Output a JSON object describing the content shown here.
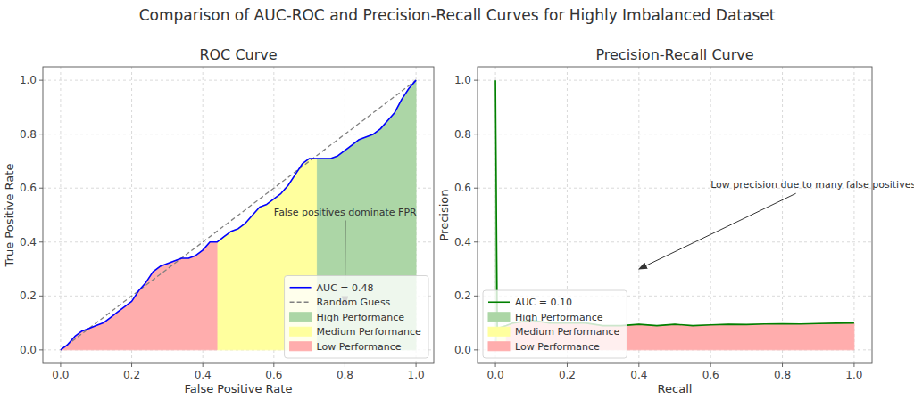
{
  "title": "Comparison of AUC-ROC and Precision-Recall Curves for Highly Imbalanced Dataset",
  "chart_data": [
    {
      "type": "line",
      "title": "ROC Curve",
      "x_label": "False Positive Rate",
      "y_label": "True Positive Rate",
      "xlim": [
        -0.05,
        1.05
      ],
      "ylim": [
        -0.05,
        1.05
      ],
      "xticks": [
        {
          "value": 0,
          "label": "0.0"
        },
        0.2,
        0.4,
        0.6,
        0.8,
        {
          "value": 1,
          "label": "1.0"
        }
      ],
      "yticks": [
        {
          "value": 0,
          "label": "0.0"
        },
        0.2,
        0.4,
        0.6,
        0.8,
        {
          "value": 1,
          "label": "1.0"
        }
      ],
      "grid": true,
      "legend": "lower right",
      "series": [
        {
          "name": "AUC = 0.48",
          "type": "line",
          "color": "blue",
          "line_style": "solid",
          "x": [
            0,
            0.02,
            0.04,
            0.06,
            0.08,
            0.1,
            0.12,
            0.14,
            0.16,
            0.18,
            0.2,
            0.22,
            0.24,
            0.26,
            0.28,
            0.3,
            0.32,
            0.34,
            0.36,
            0.38,
            0.4,
            0.42,
            0.44,
            0.46,
            0.48,
            0.5,
            0.52,
            0.54,
            0.56,
            0.58,
            0.6,
            0.62,
            0.64,
            0.66,
            0.68,
            0.7,
            0.72,
            0.74,
            0.76,
            0.78,
            0.8,
            0.82,
            0.84,
            0.86,
            0.88,
            0.9,
            0.92,
            0.94,
            0.96,
            0.98,
            1.0
          ],
          "values": [
            0,
            0.02,
            0.05,
            0.07,
            0.08,
            0.09,
            0.1,
            0.12,
            0.14,
            0.16,
            0.18,
            0.22,
            0.25,
            0.29,
            0.31,
            0.32,
            0.33,
            0.34,
            0.34,
            0.35,
            0.37,
            0.4,
            0.4,
            0.42,
            0.44,
            0.45,
            0.47,
            0.5,
            0.53,
            0.54,
            0.56,
            0.58,
            0.61,
            0.65,
            0.69,
            0.71,
            0.71,
            0.71,
            0.71,
            0.72,
            0.74,
            0.76,
            0.78,
            0.79,
            0.8,
            0.82,
            0.85,
            0.88,
            0.93,
            0.97,
            1.0
          ]
        },
        {
          "name": "Random Guess",
          "type": "line",
          "color": "gray",
          "line_style": "dashed",
          "x": [
            0,
            1
          ],
          "values": [
            0,
            1
          ]
        },
        {
          "name": "High Performance",
          "type": "area",
          "color": "#acd6a6",
          "x": [
            0.72,
            0.74,
            0.76,
            0.78,
            0.8,
            0.82,
            0.84,
            0.86,
            0.88,
            0.9,
            0.92,
            0.94,
            0.96,
            0.98,
            1.0
          ],
          "values": [
            0.71,
            0.71,
            0.71,
            0.72,
            0.74,
            0.76,
            0.78,
            0.79,
            0.8,
            0.82,
            0.85,
            0.88,
            0.93,
            0.97,
            1.0
          ]
        },
        {
          "name": "Medium Performance",
          "type": "area",
          "color": "#ffff9e",
          "x": [
            0.44,
            0.46,
            0.48,
            0.5,
            0.52,
            0.54,
            0.56,
            0.58,
            0.6,
            0.62,
            0.64,
            0.66,
            0.68,
            0.7,
            0.72
          ],
          "values": [
            0.4,
            0.42,
            0.44,
            0.45,
            0.47,
            0.5,
            0.53,
            0.54,
            0.56,
            0.58,
            0.61,
            0.65,
            0.69,
            0.71,
            0.71
          ]
        },
        {
          "name": "Low Performance",
          "type": "area",
          "color": "#ffadad",
          "x": [
            0,
            0.02,
            0.04,
            0.06,
            0.08,
            0.1,
            0.12,
            0.14,
            0.16,
            0.18,
            0.2,
            0.22,
            0.24,
            0.26,
            0.28,
            0.3,
            0.32,
            0.34,
            0.36,
            0.38,
            0.4,
            0.42,
            0.44
          ],
          "values": [
            0,
            0.02,
            0.05,
            0.07,
            0.08,
            0.09,
            0.1,
            0.12,
            0.14,
            0.16,
            0.18,
            0.22,
            0.25,
            0.29,
            0.31,
            0.32,
            0.33,
            0.34,
            0.34,
            0.35,
            0.37,
            0.4,
            0.4
          ]
        }
      ],
      "annotations": [
        {
          "text": "False positives dominate FPR",
          "x": 0.6,
          "y": 0.5,
          "arrow_x": 0.8,
          "arrow_y": 0.17
        }
      ]
    },
    {
      "type": "line",
      "title": "Precision-Recall Curve",
      "x_label": "Recall",
      "y_label": "Precision",
      "xlim": [
        -0.05,
        1.05
      ],
      "ylim": [
        -0.05,
        1.05
      ],
      "xticks": [
        {
          "value": 0,
          "label": "0.0"
        },
        0.2,
        0.4,
        0.6,
        0.8,
        {
          "value": 1,
          "label": "1.0"
        }
      ],
      "yticks": [
        {
          "value": 0,
          "label": "0.0"
        },
        0.2,
        0.4,
        0.6,
        0.8,
        {
          "value": 1,
          "label": "1.0"
        }
      ],
      "grid": true,
      "legend": "lower left",
      "series": [
        {
          "name": "AUC = 0.10",
          "type": "line",
          "color": "green",
          "line_style": "solid",
          "x": [
            0,
            0.005,
            0.03,
            0.05,
            0.1,
            0.15,
            0.2,
            0.25,
            0.3,
            0.35,
            0.4,
            0.45,
            0.5,
            0.55,
            0.6,
            0.65,
            0.7,
            0.75,
            0.8,
            0.85,
            0.9,
            0.95,
            1.0
          ],
          "values": [
            1.0,
            0.08,
            0.09,
            0.1,
            0.11,
            0.1,
            0.1,
            0.1,
            0.09,
            0.09,
            0.095,
            0.09,
            0.095,
            0.09,
            0.093,
            0.095,
            0.094,
            0.096,
            0.097,
            0.096,
            0.098,
            0.099,
            0.1
          ]
        },
        {
          "name": "High Performance",
          "type": "area",
          "color": "#acd6a6",
          "x": [
            0,
            0.005
          ],
          "values": [
            1.0,
            0.08
          ]
        },
        {
          "name": "Medium Performance",
          "type": "area",
          "color": "#ffff9e",
          "x": [
            0.005,
            0.03
          ],
          "values": [
            0.08,
            0.09
          ]
        },
        {
          "name": "Low Performance",
          "type": "area",
          "color": "#ffadad",
          "x": [
            0.03,
            0.05,
            0.1,
            0.15,
            0.2,
            0.25,
            0.3,
            0.35,
            0.4,
            0.45,
            0.5,
            0.55,
            0.6,
            0.65,
            0.7,
            0.75,
            0.8,
            0.85,
            0.9,
            0.95,
            1.0
          ],
          "values": [
            0.09,
            0.1,
            0.11,
            0.1,
            0.1,
            0.1,
            0.09,
            0.09,
            0.095,
            0.09,
            0.095,
            0.09,
            0.093,
            0.095,
            0.094,
            0.096,
            0.097,
            0.096,
            0.098,
            0.099,
            0.1
          ]
        }
      ],
      "annotations": [
        {
          "text": "Low precision due to many false positives",
          "x": 0.6,
          "y": 0.6,
          "arrow_x": 0.4,
          "arrow_y": 0.3
        }
      ]
    }
  ]
}
